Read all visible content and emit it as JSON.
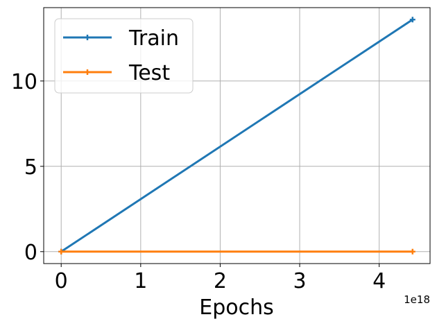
{
  "chart_data": {
    "type": "line",
    "title": "",
    "xlabel": "Epochs",
    "ylabel": "",
    "x_offset_label": "1e18",
    "x": [
      0,
      4.42
    ],
    "xlim": [
      -0.22,
      4.64
    ],
    "ylim": [
      -0.7,
      14.3
    ],
    "x_ticks": [
      0,
      1,
      2,
      3,
      4
    ],
    "x_tick_labels": [
      "0",
      "1",
      "2",
      "3",
      "4"
    ],
    "y_ticks": [
      0,
      5,
      10
    ],
    "y_tick_labels": [
      "0",
      "5",
      "10"
    ],
    "grid": true,
    "legend_position": "upper-left",
    "series": [
      {
        "name": "Train",
        "color": "#1f77b4",
        "values": [
          0.0,
          13.6
        ],
        "marker": "plus"
      },
      {
        "name": "Test",
        "color": "#ff7f0e",
        "values": [
          0.0,
          0.0
        ],
        "marker": "plus"
      }
    ]
  }
}
